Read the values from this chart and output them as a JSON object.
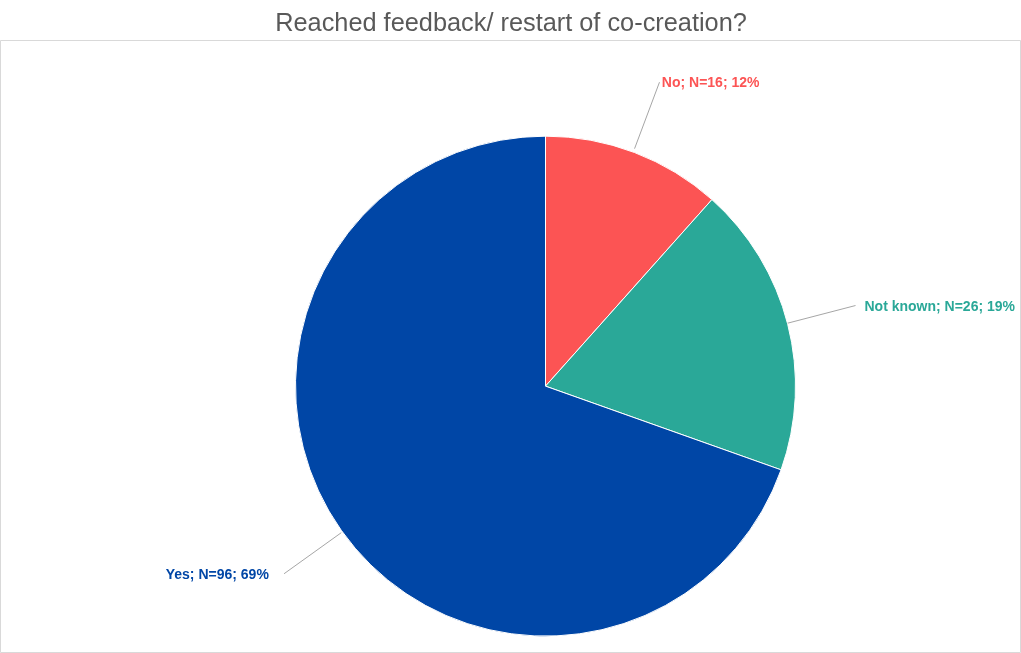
{
  "chart_data": {
    "type": "pie",
    "title": "Reached feedback/ restart of co-creation?",
    "categories": [
      "No",
      "Not known",
      "Yes"
    ],
    "values": [
      16,
      26,
      96
    ],
    "colors": [
      "#fc5454",
      "#2aa898",
      "#0046a6"
    ],
    "value_labels": [
      "; N=16; 12%",
      "; N=26; 19%",
      "; N=96; 69%"
    ]
  }
}
